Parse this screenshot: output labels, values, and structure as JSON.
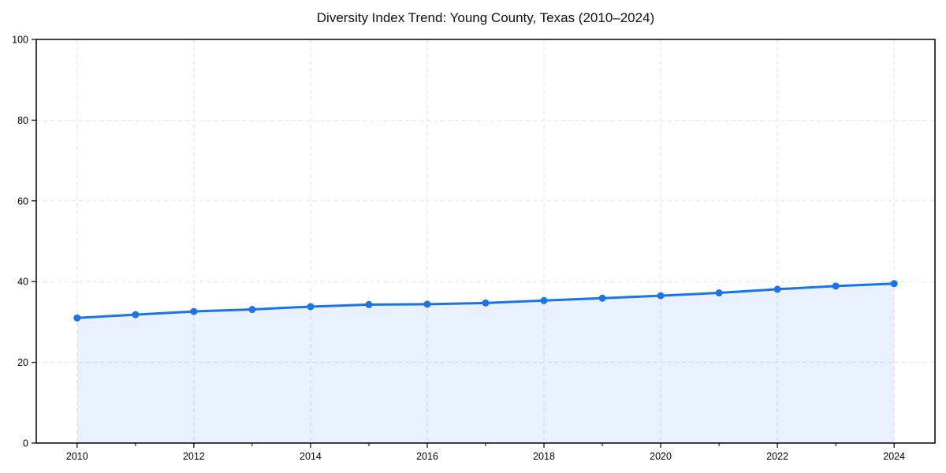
{
  "page": {
    "background": "#ffffff"
  },
  "chart_data": {
    "type": "line",
    "title": "Diversity Index Trend: Young County, Texas (2010–2024)",
    "x": [
      2010,
      2011,
      2012,
      2013,
      2014,
      2015,
      2016,
      2017,
      2018,
      2019,
      2020,
      2021,
      2022,
      2023,
      2024
    ],
    "values": [
      31.0,
      31.8,
      32.6,
      33.1,
      33.8,
      34.3,
      34.4,
      34.7,
      35.3,
      35.9,
      36.5,
      37.2,
      38.1,
      38.9,
      39.5
    ],
    "xlabel": "",
    "ylabel": "",
    "xlim": [
      2009.3,
      2024.7
    ],
    "ylim": [
      0,
      100
    ],
    "x_major_ticks": [
      2010,
      2012,
      2014,
      2016,
      2018,
      2020,
      2022,
      2024
    ],
    "x_minor_ticks": [
      2011,
      2013,
      2015,
      2017,
      2019,
      2021,
      2023
    ],
    "y_ticks": [
      0,
      20,
      40,
      60,
      80,
      100
    ],
    "grid": true,
    "grid_style": "dashed",
    "legend_position": "none",
    "area_fill": true,
    "markers": true,
    "colors": {
      "line": "#1a73e8",
      "marker": "#1a73e8",
      "fill_opacity": 0.1,
      "grid": "#e3e3e3",
      "spine": "#000000",
      "tick_text": "#000000",
      "title_text": "#111111"
    }
  }
}
